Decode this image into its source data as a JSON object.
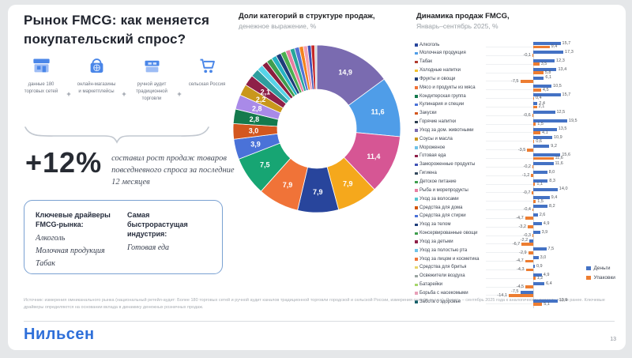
{
  "slide": {
    "title": "Рынок FMCG: как меняется покупательский спрос?",
    "page_number": "13",
    "logo": "Нильсен",
    "source": "Источник: измерения омниканального рынка (национальный ретейл-аудит: Более 180 торговых сетей и ручной аудит каналов традиционной торговли городской и сельской России, измерения онлайн-рынка). Январь – сентябрь 2025 года к аналогичному периоду годом ранее. Ключевые драйверы определяются на основании вклада в динамику денежных розничных продаж."
  },
  "left": {
    "plus": "+",
    "channels": [
      {
        "icon": "storefront-icon",
        "label": "данные 180 торговых сетей"
      },
      {
        "icon": "online-store-icon",
        "label": "онлайн-магазины и маркетплейсы"
      },
      {
        "icon": "manual-audit-icon",
        "label": "ручной аудит традиционной торговли"
      },
      {
        "icon": "cart-icon",
        "label": "сельская Россия"
      }
    ],
    "growth": {
      "value": "+12%",
      "caption": "составил рост продаж товаров повседневного спроса за последние 12 месяцев"
    },
    "drivers_box": {
      "col1_title": "Ключевые драйверы FMCG-рынка:",
      "col1_items": [
        "Алкоголь",
        "Молочная продукция",
        "Табак"
      ],
      "col2_title": "Самая быстрорастущая индустрия:",
      "col2_items": [
        "Готовая еда"
      ]
    }
  },
  "chart_data": [
    {
      "type": "pie",
      "donut": true,
      "title": "Доли категорий в структуре продаж,",
      "subtitle": "денежное выражение, %",
      "slices": [
        {
          "value": 14.9,
          "color": "#7a6bb0",
          "labeled": true
        },
        {
          "value": 11.6,
          "color": "#4f9de8",
          "labeled": true
        },
        {
          "value": 11.4,
          "color": "#d65694",
          "labeled": true
        },
        {
          "value": 7.9,
          "color": "#f5a81c",
          "labeled": true
        },
        {
          "value": 7.9,
          "color": "#28459c",
          "labeled": true
        },
        {
          "value": 7.9,
          "color": "#f07338",
          "labeled": true
        },
        {
          "value": 7.5,
          "color": "#17a573",
          "labeled": true
        },
        {
          "value": 3.9,
          "color": "#4a72d8",
          "labeled": true
        },
        {
          "value": 3.0,
          "color": "#d3571f",
          "labeled": true
        },
        {
          "value": 2.8,
          "color": "#157a4d",
          "labeled": true
        },
        {
          "value": 2.8,
          "color": "#a98ae8",
          "labeled": true
        },
        {
          "value": 2.2,
          "color": "#c9971c",
          "labeled": true
        },
        {
          "value": 2.1,
          "color": "#8e2048",
          "labeled": true
        },
        {
          "value": 1.6,
          "color": "#2e9e9e",
          "labeled": false
        },
        {
          "value": 1.2,
          "color": "#56d4e8",
          "labeled": false
        },
        {
          "value": 1.1,
          "color": "#8b1f3f",
          "labeled": false
        },
        {
          "value": 1.1,
          "color": "#3f9e4d",
          "labeled": false
        },
        {
          "value": 1.0,
          "color": "#27b3c4",
          "labeled": false
        },
        {
          "value": 1.0,
          "color": "#1f3d7a",
          "labeled": false
        },
        {
          "value": 1.0,
          "color": "#4caf50",
          "labeled": false
        },
        {
          "value": 0.9,
          "color": "#e87ea1",
          "labeled": false
        },
        {
          "value": 0.9,
          "color": "#26a69a",
          "labeled": false
        },
        {
          "value": 0.9,
          "color": "#5472d3",
          "labeled": false
        },
        {
          "value": 0.8,
          "color": "#f4831f",
          "labeled": false
        },
        {
          "value": 0.8,
          "color": "#f2a0b5",
          "labeled": false
        },
        {
          "value": 0.7,
          "color": "#3f51b5",
          "labeled": false
        },
        {
          "value": 0.7,
          "color": "#c62828",
          "labeled": false
        },
        {
          "value": 0.4,
          "color": "#cfcfcf",
          "labeled": false
        }
      ]
    },
    {
      "type": "bar",
      "orientation": "horizontal",
      "title": "Динамика продаж FMCG,",
      "subtitle": "Январь–сентябрь 2025, %",
      "xlim": [
        -16,
        20
      ],
      "legend": [
        {
          "name": "Деньги",
          "color": "#4472c4"
        },
        {
          "name": "Упаковки",
          "color": "#ed7d31"
        }
      ],
      "categories": [
        {
          "label": "Алкоголь",
          "marker_color": "#28459c"
        },
        {
          "label": "Молочная продукция",
          "marker_color": "#4f9de8"
        },
        {
          "label": "Табак",
          "marker_color": "#b03a2e"
        },
        {
          "label": "Холодные напитки",
          "marker_color": "#f2c12e"
        },
        {
          "label": "Фрукты и овощи",
          "marker_color": "#1f3d7a"
        },
        {
          "label": "Мясо и продукты из мяса",
          "marker_color": "#f07338"
        },
        {
          "label": "Кондитерская группа",
          "marker_color": "#157a4d"
        },
        {
          "label": "Кулинария и специи",
          "marker_color": "#4a72d8"
        },
        {
          "label": "Закуски",
          "marker_color": "#d3571f"
        },
        {
          "label": "Горячие напитки",
          "marker_color": "#2c3e50"
        },
        {
          "label": "Уход за дом. животными",
          "marker_color": "#7a6bb0"
        },
        {
          "label": "Соусы и масла",
          "marker_color": "#c9971c"
        },
        {
          "label": "Мороженое",
          "marker_color": "#6fc3e8"
        },
        {
          "label": "Готовая еда",
          "marker_color": "#8e2048"
        },
        {
          "label": "Замороженные продукты",
          "marker_color": "#3f51b5"
        },
        {
          "label": "Гигиена",
          "marker_color": "#34495e"
        },
        {
          "label": "Детское питание",
          "marker_color": "#3f9e4d"
        },
        {
          "label": "Рыба и морепродукты",
          "marker_color": "#e87ea1"
        },
        {
          "label": "Уход за волосами",
          "marker_color": "#56c5d0"
        },
        {
          "label": "Средства для дома",
          "marker_color": "#d35400"
        },
        {
          "label": "Средства для стирки",
          "marker_color": "#4a72d8"
        },
        {
          "label": "Уход за телом",
          "marker_color": "#1f3d7a"
        },
        {
          "label": "Консервированные овощи",
          "marker_color": "#3f9e4d"
        },
        {
          "label": "Уход за детьми",
          "marker_color": "#8e2048"
        },
        {
          "label": "Уход за полостью рта",
          "marker_color": "#6fc3e8"
        },
        {
          "label": "Уход за лицом и косметика",
          "marker_color": "#f07338"
        },
        {
          "label": "Средства для бритья",
          "marker_color": "#e8d56b"
        },
        {
          "label": "Освежители воздуха",
          "marker_color": "#9aa5a1"
        },
        {
          "label": "Батарейки",
          "marker_color": "#a5d66b"
        },
        {
          "label": "Борьба с насекомыми",
          "marker_color": "#e8a0b8"
        },
        {
          "label": "Забота о здоровье",
          "marker_color": "#17626b"
        }
      ],
      "series": [
        {
          "name": "Деньги",
          "values": [
            15.7,
            17.3,
            12.3,
            13.4,
            6.1,
            10.5,
            15.7,
            2.4,
            12.5,
            19.5,
            13.5,
            10.9,
            9.2,
            15.6,
            11.6,
            8.0,
            8.3,
            14.0,
            9.4,
            8.2,
            2.6,
            4.9,
            3.9,
            -2.2,
            7.5,
            3.0,
            0.9,
            4.9,
            6.4,
            -7.5,
            13.9
          ]
        },
        {
          "name": "Упаковки",
          "values": [
            9.4,
            -0.1,
            3.5,
            5.8,
            -7.5,
            4.5,
            0.4,
            2.1,
            -0.6,
            1.5,
            4.1,
            0.6,
            -3.5,
            11.6,
            -0.2,
            -1.2,
            1.1,
            -0.7,
            1.5,
            -0.4,
            -4.7,
            -3.2,
            -0.3,
            -6.7,
            -2.9,
            -4.7,
            -4.3,
            1.2,
            -4.5,
            -14.1,
            5.1
          ]
        }
      ]
    }
  ]
}
